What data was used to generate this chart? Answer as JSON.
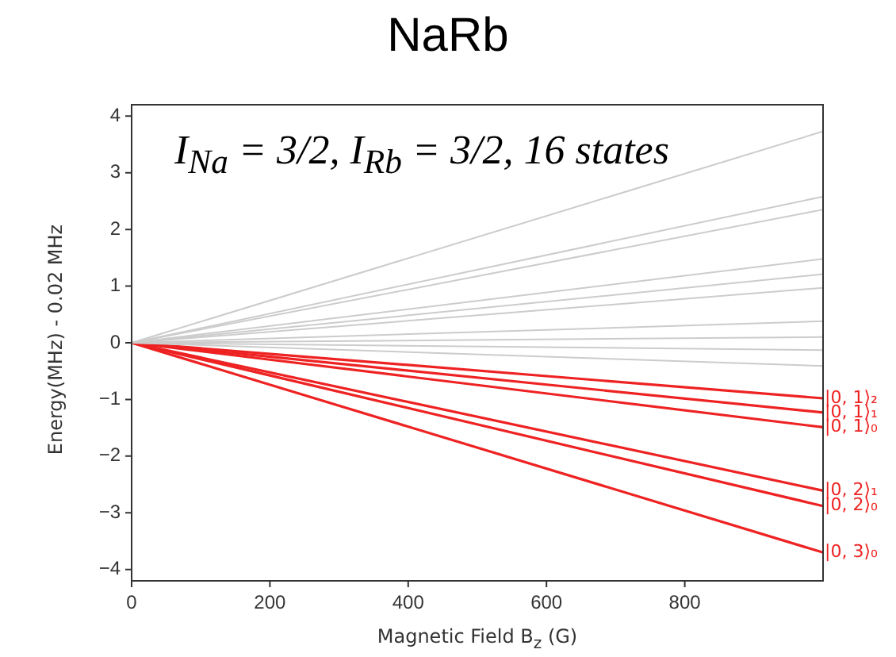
{
  "chart_data": {
    "type": "line",
    "title": "NaRb",
    "xlabel": "Magnetic Field B$_{z}$ (G)",
    "ylabel": "Energy(MHz) - 0.02 MHz",
    "annotations": [
      "I$_{Na}$ = 3/2, I$_{Rb}$ = 3/2, 16 states"
    ],
    "x": [
      0,
      1000
    ],
    "xlim": [
      0,
      1000
    ],
    "xticks": [
      0,
      200,
      400,
      600,
      800
    ],
    "ylim": [
      -4.2,
      4.2
    ],
    "yticks": [
      -4,
      -3,
      -2,
      -1,
      0,
      1,
      2,
      3,
      4
    ],
    "grid": false,
    "legend": false,
    "marker": "none",
    "line_style": "solid",
    "series": [
      {
        "color": "#cccccc",
        "values": [
          0,
          3.73
        ]
      },
      {
        "color": "#cccccc",
        "values": [
          0,
          2.58
        ]
      },
      {
        "color": "#cccccc",
        "values": [
          0,
          2.35
        ]
      },
      {
        "color": "#cccccc",
        "values": [
          0,
          1.48
        ]
      },
      {
        "color": "#cccccc",
        "values": [
          0,
          1.21
        ]
      },
      {
        "color": "#cccccc",
        "values": [
          0,
          0.97
        ]
      },
      {
        "color": "#cccccc",
        "values": [
          0,
          0.38
        ]
      },
      {
        "color": "#cccccc",
        "values": [
          0,
          0.1
        ]
      },
      {
        "color": "#cccccc",
        "values": [
          0,
          -0.13
        ]
      },
      {
        "color": "#cccccc",
        "values": [
          0,
          -0.41
        ]
      },
      {
        "name": "|0, 1⟩₂",
        "color": "#ee2222",
        "values": [
          0,
          -0.98
        ]
      },
      {
        "name": "|0, 1⟩₁",
        "color": "#ee2222",
        "values": [
          0,
          -1.23
        ]
      },
      {
        "name": "|0, 1⟩₀",
        "color": "#ee2222",
        "values": [
          0,
          -1.49
        ]
      },
      {
        "name": "|0, 2⟩₁",
        "color": "#ee2222",
        "values": [
          0,
          -2.61
        ]
      },
      {
        "name": "|0, 2⟩₀",
        "color": "#ee2222",
        "values": [
          0,
          -2.88
        ]
      },
      {
        "name": "|0, 3⟩₀",
        "color": "#ee2222",
        "values": [
          0,
          -3.7
        ]
      }
    ]
  }
}
